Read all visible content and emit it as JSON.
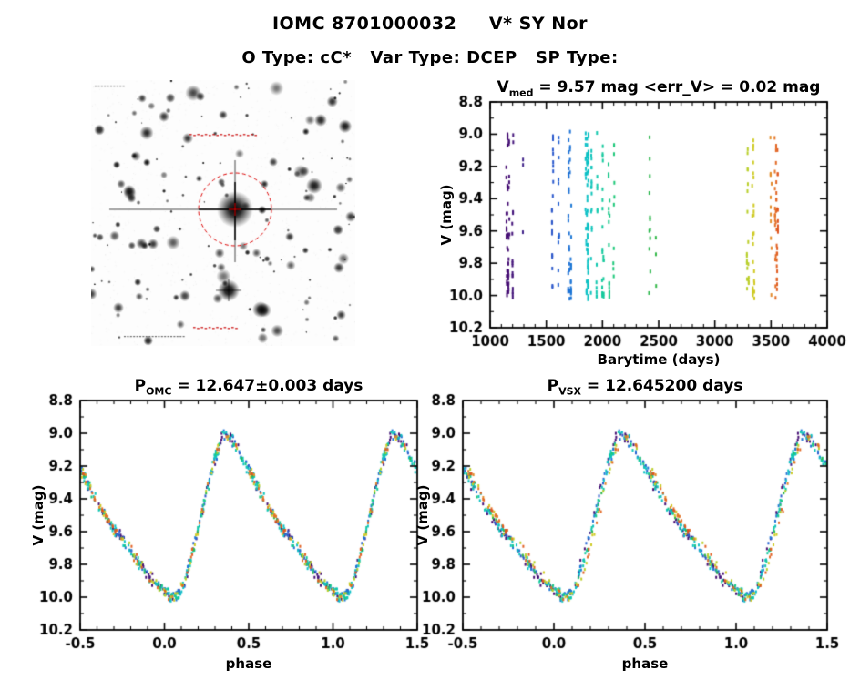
{
  "header": {
    "title": "IOMC 8701000032     V* SY Nor",
    "subtitle": "O Type: cC*   Var Type: DCEP   SP Type:"
  },
  "finding_chart": {
    "content": "inverted grayscale star field image centered on the target star",
    "marker": "red dashed aperture circle with central cross on target",
    "marker_color": "#dd0000"
  },
  "chart_data": [
    {
      "type": "scatter",
      "name": "v-magnitude-vs-barytime",
      "title": {
        "prefix": "V",
        "sub": "med",
        "rest": " = 9.57 mag <err_V> = 0.02 mag"
      },
      "xlabel": "Barytime (days)",
      "ylabel": "V (mag)",
      "xlim": [
        1000,
        4000
      ],
      "ylim": [
        8.8,
        10.2
      ],
      "y_axis_note": "magnitude axis, brighter (8.8) at top",
      "xticks": [
        1000,
        1500,
        2000,
        2500,
        3000,
        3500,
        4000
      ],
      "yticks": [
        8.8,
        9.0,
        9.2,
        9.4,
        9.6,
        9.8,
        10.0,
        10.2
      ],
      "x_minor_step": 100,
      "y_minor_step": 0.1,
      "x_decimals": 0,
      "y_decimals": 1,
      "grid": false,
      "point_color_note": "points rainbow-colored by observation time (purple early to red late)"
    },
    {
      "type": "scatter",
      "name": "phase-folded-lightcurve-omc-period",
      "title": {
        "prefix": "P",
        "sub": "OMC",
        "rest": " = 12.647±0.003 days"
      },
      "period_days": 12.647,
      "xlabel": "phase",
      "ylabel": "V (mag)",
      "xlim": [
        -0.5,
        1.5
      ],
      "ylim": [
        8.8,
        10.2
      ],
      "xticks": [
        -0.5,
        0.0,
        0.5,
        1.0,
        1.5
      ],
      "yticks": [
        8.8,
        9.0,
        9.2,
        9.4,
        9.6,
        9.8,
        10.0,
        10.2
      ],
      "x_minor_step": 0.1,
      "y_minor_step": 0.1,
      "x_decimals": 1,
      "y_decimals": 1,
      "grid": false
    },
    {
      "type": "scatter",
      "name": "phase-folded-lightcurve-vsx-period",
      "title": {
        "prefix": "P",
        "sub": "VSX",
        "rest": " = 12.645200 days"
      },
      "period_days": 12.6452,
      "xlabel": "phase",
      "ylabel": "V (mag)",
      "xlim": [
        -0.5,
        1.5
      ],
      "ylim": [
        8.8,
        10.2
      ],
      "xticks": [
        -0.5,
        0.0,
        0.5,
        1.0,
        1.5
      ],
      "yticks": [
        8.8,
        9.0,
        9.2,
        9.4,
        9.6,
        9.8,
        10.0,
        10.2
      ],
      "x_minor_step": 0.1,
      "y_minor_step": 0.1,
      "x_decimals": 1,
      "y_decimals": 1,
      "grid": false
    }
  ],
  "observations": {
    "source_id": "IOMC 8701000032",
    "star_name": "V* SY Nor",
    "v_median_mag": 9.57,
    "v_mean_error_mag": 0.02,
    "period_days": 12.647,
    "epoch_t0_barytime": 1150.0,
    "magnitude_range": [
      9.0,
      10.0
    ],
    "template_phase_mag": [
      [
        0.0,
        9.96
      ],
      [
        0.04,
        10.0
      ],
      [
        0.08,
        9.99
      ],
      [
        0.12,
        9.9
      ],
      [
        0.16,
        9.76
      ],
      [
        0.2,
        9.58
      ],
      [
        0.25,
        9.36
      ],
      [
        0.3,
        9.15
      ],
      [
        0.34,
        9.03
      ],
      [
        0.37,
        9.0
      ],
      [
        0.4,
        9.04
      ],
      [
        0.45,
        9.13
      ],
      [
        0.5,
        9.22
      ],
      [
        0.55,
        9.32
      ],
      [
        0.6,
        9.42
      ],
      [
        0.65,
        9.5
      ],
      [
        0.7,
        9.58
      ],
      [
        0.75,
        9.65
      ],
      [
        0.8,
        9.72
      ],
      [
        0.85,
        9.79
      ],
      [
        0.9,
        9.86
      ],
      [
        0.95,
        9.92
      ],
      [
        1.0,
        9.96
      ]
    ],
    "clusters_t_start_end_n": [
      [
        1142,
        1172,
        55
      ],
      [
        1196,
        1206,
        16
      ],
      [
        1290,
        1294,
        3
      ],
      [
        1548,
        1562,
        22
      ],
      [
        1606,
        1616,
        12
      ],
      [
        1694,
        1722,
        45
      ],
      [
        1848,
        1876,
        70
      ],
      [
        1896,
        1906,
        16
      ],
      [
        1946,
        1956,
        12
      ],
      [
        1996,
        2012,
        22
      ],
      [
        2054,
        2066,
        16
      ],
      [
        2096,
        2106,
        10
      ],
      [
        2414,
        2426,
        12
      ],
      [
        2474,
        2478,
        3
      ],
      [
        3284,
        3302,
        20
      ],
      [
        3332,
        3352,
        28
      ],
      [
        3494,
        3506,
        12
      ],
      [
        3532,
        3562,
        45
      ]
    ],
    "colormap": {
      "t_range": [
        1130,
        3570
      ],
      "stops": [
        [
          0.0,
          "#470a6f"
        ],
        [
          0.13,
          "#3a3aa2"
        ],
        [
          0.18,
          "#2a5cd0"
        ],
        [
          0.24,
          "#1f75d6"
        ],
        [
          0.295,
          "#0cc0c8"
        ],
        [
          0.34,
          "#12c9ac"
        ],
        [
          0.4,
          "#1ec878"
        ],
        [
          0.53,
          "#2eb84e"
        ],
        [
          0.75,
          "#7cc433"
        ],
        [
          0.885,
          "#b8cf2a"
        ],
        [
          0.91,
          "#d2ca25"
        ],
        [
          0.955,
          "#e0a226"
        ],
        [
          0.985,
          "#e4762a"
        ],
        [
          1.0,
          "#dd4a1a"
        ]
      ]
    }
  }
}
